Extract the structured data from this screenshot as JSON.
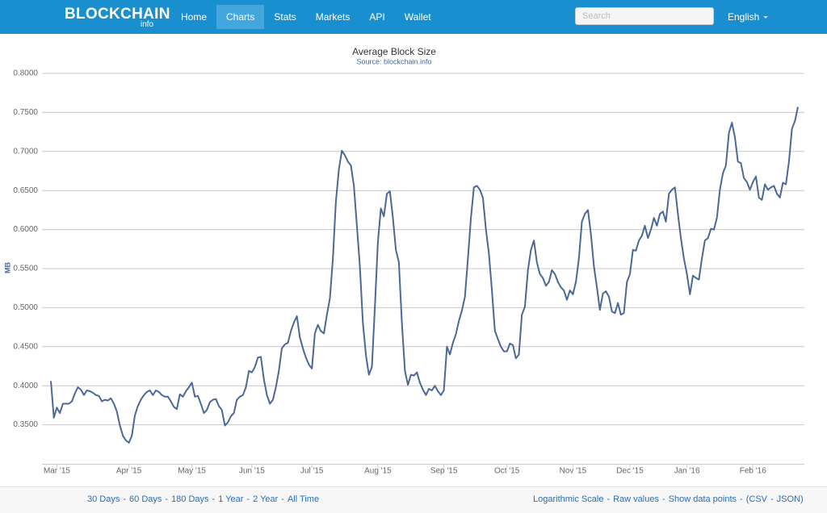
{
  "nav": {
    "brand": "BLOCKCHAIN",
    "brand_sub": "info",
    "items": [
      "Home",
      "Charts",
      "Stats",
      "Markets",
      "API",
      "Wallet"
    ],
    "search_placeholder": "Search",
    "language": "English"
  },
  "chart_data": {
    "type": "line",
    "title": "Average Block Size",
    "subtitle": "Source: blockchain.info",
    "ylabel": "MB",
    "categories": [
      null,
      null,
      "Mar '15",
      null,
      null,
      null,
      null,
      null,
      null,
      null,
      null,
      null,
      null,
      null,
      null,
      null,
      null,
      null,
      null,
      null,
      null,
      null,
      null,
      null,
      null,
      null,
      "Apr '15",
      null,
      null,
      null,
      null,
      null,
      null,
      null,
      null,
      null,
      null,
      null,
      null,
      null,
      null,
      null,
      null,
      null,
      null,
      null,
      null,
      "May '15",
      null,
      null,
      null,
      null,
      null,
      null,
      null,
      null,
      null,
      null,
      null,
      null,
      null,
      null,
      null,
      null,
      null,
      null,
      null,
      "Jun '15",
      null,
      null,
      null,
      null,
      null,
      null,
      null,
      null,
      null,
      null,
      null,
      null,
      null,
      null,
      null,
      null,
      null,
      null,
      null,
      "Jul '15",
      null,
      null,
      null,
      null,
      null,
      null,
      null,
      null,
      null,
      null,
      null,
      null,
      null,
      null,
      null,
      null,
      null,
      null,
      null,
      null,
      null,
      "Aug '15",
      null,
      null,
      null,
      null,
      null,
      null,
      null,
      null,
      null,
      null,
      null,
      null,
      null,
      null,
      null,
      null,
      null,
      null,
      null,
      null,
      null,
      "Sep '15",
      null,
      null,
      null,
      null,
      null,
      null,
      null,
      null,
      null,
      null,
      null,
      null,
      null,
      null,
      null,
      null,
      null,
      null,
      null,
      null,
      "Oct '15",
      null,
      null,
      null,
      null,
      null,
      null,
      null,
      null,
      null,
      null,
      null,
      null,
      null,
      null,
      null,
      null,
      null,
      null,
      null,
      null,
      null,
      "Nov '15",
      null,
      null,
      null,
      null,
      null,
      null,
      null,
      null,
      null,
      null,
      null,
      null,
      null,
      null,
      null,
      null,
      null,
      null,
      "Dec '15",
      null,
      null,
      null,
      null,
      null,
      null,
      null,
      null,
      null,
      null,
      null,
      null,
      null,
      null,
      null,
      null,
      null,
      null,
      "Jan '16",
      null,
      null,
      null,
      null,
      null,
      null,
      null,
      null,
      null,
      null,
      null,
      null,
      null,
      null,
      null,
      null,
      null,
      null,
      null,
      null,
      null,
      "Feb '16",
      null,
      null,
      null,
      null,
      null,
      null,
      null,
      null,
      null,
      null,
      null,
      null,
      null,
      null,
      null
    ],
    "values": [
      0.406,
      0.359,
      0.372,
      0.365,
      0.377,
      0.377,
      0.377,
      0.38,
      0.39,
      0.398,
      0.395,
      0.388,
      0.394,
      0.393,
      0.391,
      0.388,
      0.387,
      0.38,
      0.382,
      0.381,
      0.384,
      0.377,
      0.367,
      0.349,
      0.336,
      0.33,
      0.327,
      0.336,
      0.362,
      0.374,
      0.382,
      0.388,
      0.392,
      0.394,
      0.388,
      0.394,
      0.392,
      0.388,
      0.386,
      0.386,
      0.38,
      0.373,
      0.37,
      0.389,
      0.386,
      0.393,
      0.398,
      0.404,
      0.386,
      0.387,
      0.377,
      0.365,
      0.369,
      0.379,
      0.382,
      0.383,
      0.374,
      0.369,
      0.349,
      0.353,
      0.361,
      0.365,
      0.382,
      0.386,
      0.388,
      0.398,
      0.419,
      0.417,
      0.424,
      0.436,
      0.437,
      0.408,
      0.388,
      0.377,
      0.382,
      0.398,
      0.419,
      0.448,
      0.453,
      0.455,
      0.47,
      0.481,
      0.489,
      0.462,
      0.448,
      0.436,
      0.427,
      0.422,
      0.467,
      0.478,
      0.47,
      0.467,
      0.491,
      0.512,
      0.563,
      0.636,
      0.677,
      0.701,
      0.695,
      0.687,
      0.682,
      0.656,
      0.605,
      0.553,
      0.481,
      0.439,
      0.414,
      0.424,
      0.501,
      0.584,
      0.627,
      0.617,
      0.646,
      0.649,
      0.615,
      0.574,
      0.558,
      0.481,
      0.419,
      0.401,
      0.414,
      0.413,
      0.417,
      0.404,
      0.395,
      0.388,
      0.396,
      0.394,
      0.4,
      0.393,
      0.388,
      0.394,
      0.45,
      0.44,
      0.455,
      0.466,
      0.483,
      0.496,
      0.514,
      0.563,
      0.615,
      0.654,
      0.656,
      0.651,
      0.641,
      0.6,
      0.569,
      0.522,
      0.47,
      0.46,
      0.45,
      0.444,
      0.444,
      0.454,
      0.452,
      0.435,
      0.44,
      0.491,
      0.501,
      0.548,
      0.574,
      0.586,
      0.558,
      0.543,
      0.538,
      0.528,
      0.533,
      0.548,
      0.543,
      0.533,
      0.526,
      0.522,
      0.51,
      0.522,
      0.517,
      0.533,
      0.563,
      0.61,
      0.62,
      0.625,
      0.594,
      0.553,
      0.526,
      0.497,
      0.518,
      0.521,
      0.514,
      0.495,
      0.493,
      0.506,
      0.491,
      0.493,
      0.533,
      0.543,
      0.574,
      0.573,
      0.586,
      0.592,
      0.605,
      0.589,
      0.6,
      0.615,
      0.605,
      0.62,
      0.623,
      0.61,
      0.646,
      0.651,
      0.654,
      0.62,
      0.589,
      0.563,
      0.543,
      0.517,
      0.541,
      0.538,
      0.536,
      0.563,
      0.586,
      0.589,
      0.601,
      0.6,
      0.615,
      0.651,
      0.672,
      0.682,
      0.724,
      0.737,
      0.718,
      0.687,
      0.685,
      0.666,
      0.661,
      0.651,
      0.661,
      0.668,
      0.641,
      0.638,
      0.658,
      0.651,
      0.654,
      0.656,
      0.646,
      0.641,
      0.66,
      0.658,
      0.687,
      0.729,
      0.739,
      0.757
    ],
    "color": "#4a6996",
    "ylim": [
      0.3,
      0.8
    ],
    "yticks": [
      {
        "value": 0.35,
        "label": "0.3500"
      },
      {
        "value": 0.4,
        "label": "0.4000"
      },
      {
        "value": 0.45,
        "label": "0.4500"
      },
      {
        "value": 0.5,
        "label": "0.5000"
      },
      {
        "value": 0.55,
        "label": "0.5500"
      },
      {
        "value": 0.6,
        "label": "0.6000"
      },
      {
        "value": 0.65,
        "label": "0.6500"
      },
      {
        "value": 0.7,
        "label": "0.7000"
      },
      {
        "value": 0.75,
        "label": "0.7500"
      },
      {
        "value": 0.8,
        "label": "0.8000"
      }
    ],
    "grid": true
  },
  "footer": {
    "ranges": [
      "30 Days",
      "60 Days",
      "180 Days",
      "1 Year",
      "2 Year",
      "All Time"
    ],
    "separator": "-",
    "options": [
      "Logarithmic Scale",
      "Raw values",
      "Show data points"
    ],
    "export_open": "(",
    "exports": [
      "CSV",
      "JSON"
    ],
    "export_close": ")"
  }
}
